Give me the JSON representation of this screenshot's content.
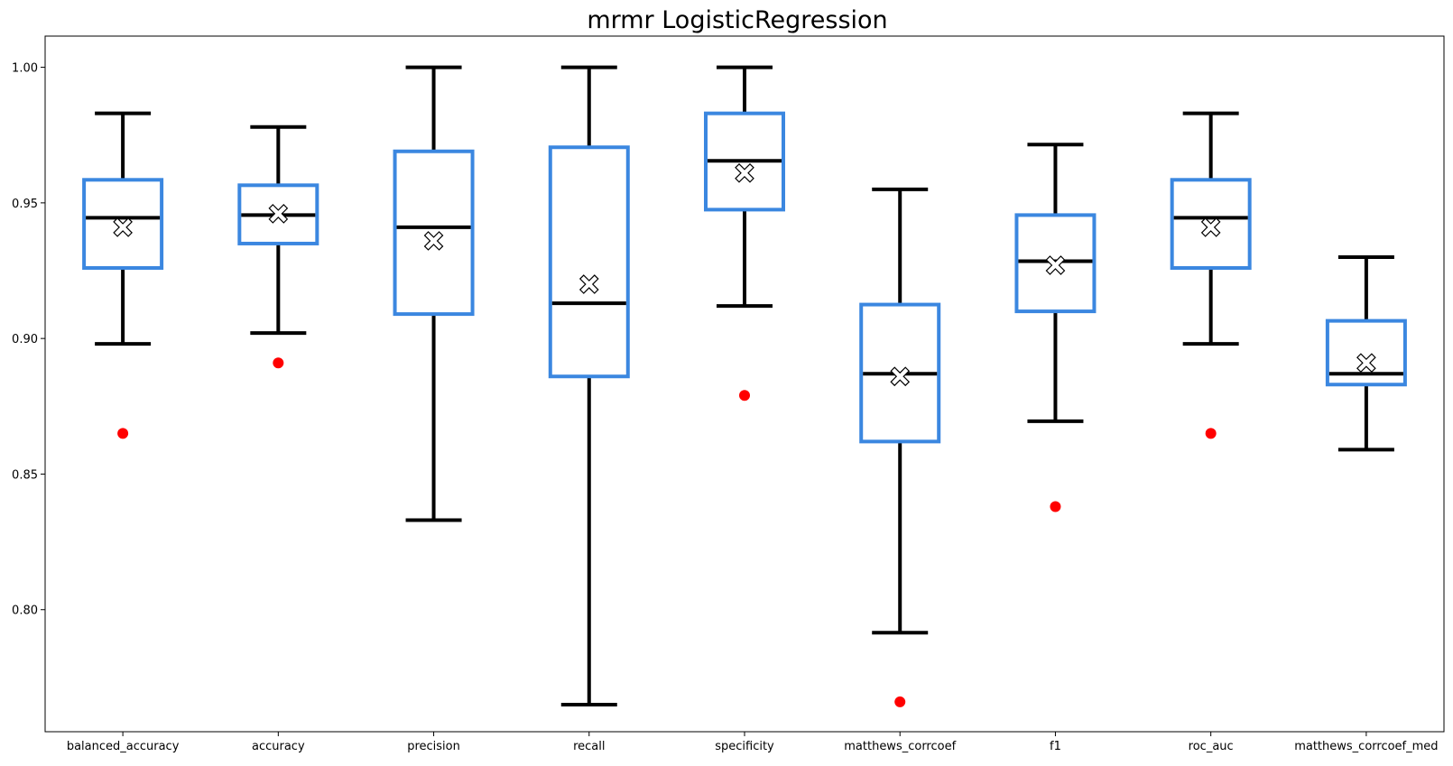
{
  "chart_data": {
    "type": "box",
    "title": "mrmr LogisticRegression",
    "xlabel": "",
    "ylabel": "",
    "ylim": [
      0.755,
      1.0115
    ],
    "yticks": [
      0.8,
      0.85,
      0.9,
      0.95,
      1.0
    ],
    "ytick_labels": [
      "0.80",
      "0.85",
      "0.90",
      "0.95",
      "1.00"
    ],
    "grid": false,
    "colors": {
      "box": "#3b87e0",
      "whisker": "#000000",
      "median": "#000000",
      "mean_marker_fill": "#ffffff",
      "mean_marker_edge": "#000000",
      "outlier": "#ff0000"
    },
    "categories": [
      "balanced_accuracy",
      "accuracy",
      "precision",
      "recall",
      "specificity",
      "matthews_corrcoef",
      "f1",
      "roc_auc",
      "matthews_corrcoef_med"
    ],
    "boxes": [
      {
        "whislo": 0.898,
        "q1": 0.926,
        "med": 0.9445,
        "q3": 0.9585,
        "whishi": 0.983,
        "mean": 0.941,
        "fliers": [
          0.865
        ]
      },
      {
        "whislo": 0.902,
        "q1": 0.935,
        "med": 0.9455,
        "q3": 0.9565,
        "whishi": 0.978,
        "mean": 0.946,
        "fliers": [
          0.891
        ]
      },
      {
        "whislo": 0.833,
        "q1": 0.909,
        "med": 0.941,
        "q3": 0.969,
        "whishi": 1.0,
        "mean": 0.936,
        "fliers": []
      },
      {
        "whislo": 0.765,
        "q1": 0.886,
        "med": 0.913,
        "q3": 0.9705,
        "whishi": 1.0,
        "mean": 0.92,
        "fliers": []
      },
      {
        "whislo": 0.912,
        "q1": 0.9475,
        "med": 0.9655,
        "q3": 0.983,
        "whishi": 1.0,
        "mean": 0.961,
        "fliers": [
          0.879
        ]
      },
      {
        "whislo": 0.7915,
        "q1": 0.862,
        "med": 0.887,
        "q3": 0.9125,
        "whishi": 0.955,
        "mean": 0.886,
        "fliers": [
          0.766
        ]
      },
      {
        "whislo": 0.8695,
        "q1": 0.91,
        "med": 0.9285,
        "q3": 0.9455,
        "whishi": 0.9715,
        "mean": 0.927,
        "fliers": [
          0.838
        ]
      },
      {
        "whislo": 0.898,
        "q1": 0.926,
        "med": 0.9445,
        "q3": 0.9585,
        "whishi": 0.983,
        "mean": 0.941,
        "fliers": [
          0.865
        ]
      },
      {
        "whislo": 0.859,
        "q1": 0.883,
        "med": 0.887,
        "q3": 0.9065,
        "whishi": 0.93,
        "mean": 0.891,
        "fliers": []
      }
    ]
  }
}
